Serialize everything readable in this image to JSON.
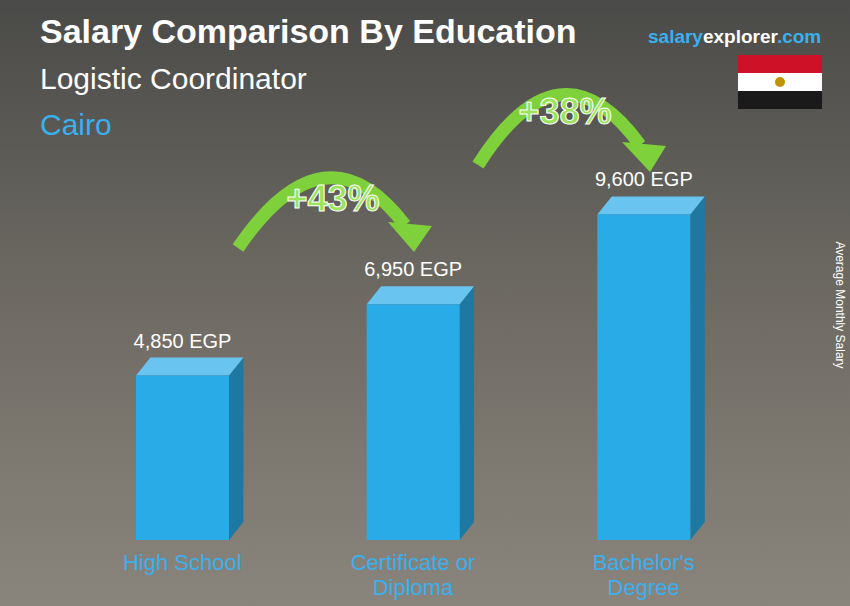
{
  "chart_data": {
    "type": "bar",
    "title": "Salary Comparison By Education",
    "subtitle": "Logistic Coordinator",
    "location": "Cairo",
    "source": "salaryexplorer.com",
    "y_label": "Average Monthly Salary",
    "categories": [
      "High School",
      "Certificate or Diploma",
      "Bachelor's Degree"
    ],
    "values": [
      4850,
      6950,
      9600
    ],
    "value_labels": [
      "4,850 EGP",
      "6,950 EGP",
      "9,600 EGP"
    ],
    "annotations": [
      "+43%",
      "+38%"
    ],
    "color": "#29abe8",
    "ylim": [
      0,
      12000
    ],
    "data_labels": true,
    "tick_labels": "x",
    "grid": false
  }
}
